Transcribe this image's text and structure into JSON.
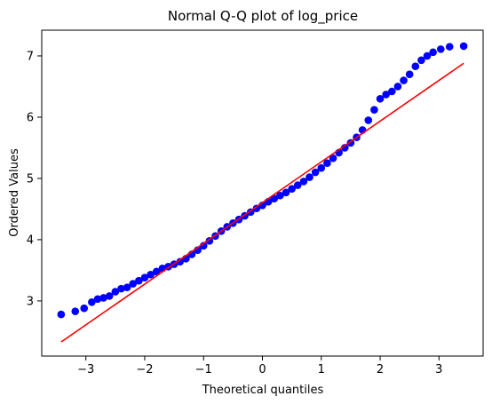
{
  "chart_data": {
    "type": "scatter",
    "title": "Normal Q-Q plot of log_price",
    "xlabel": "Theoretical quantiles",
    "ylabel": "Ordered Values",
    "xlim": [
      -3.75,
      3.75
    ],
    "ylim": [
      2.1,
      7.42
    ],
    "xticks": [
      -3,
      -2,
      -1,
      0,
      1,
      2,
      3
    ],
    "yticks": [
      3,
      4,
      5,
      6,
      7
    ],
    "grid": false,
    "legend": "none",
    "series": [
      {
        "kind": "points",
        "color": "#0000ff",
        "points": [
          [
            -3.42,
            2.78
          ],
          [
            -3.18,
            2.83
          ],
          [
            -3.03,
            2.88
          ],
          [
            -2.9,
            2.98
          ],
          [
            -2.8,
            3.03
          ],
          [
            -2.7,
            3.05
          ],
          [
            -2.6,
            3.08
          ],
          [
            -2.5,
            3.15
          ],
          [
            -2.4,
            3.2
          ],
          [
            -2.3,
            3.22
          ],
          [
            -2.2,
            3.28
          ],
          [
            -2.1,
            3.33
          ],
          [
            -2.0,
            3.38
          ],
          [
            -1.9,
            3.43
          ],
          [
            -1.8,
            3.48
          ],
          [
            -1.7,
            3.53
          ],
          [
            -1.6,
            3.56
          ],
          [
            -1.5,
            3.6
          ],
          [
            -1.4,
            3.64
          ],
          [
            -1.3,
            3.69
          ],
          [
            -1.2,
            3.76
          ],
          [
            -1.1,
            3.83
          ],
          [
            -1.0,
            3.9
          ],
          [
            -0.9,
            3.98
          ],
          [
            -0.8,
            4.06
          ],
          [
            -0.7,
            4.14
          ],
          [
            -0.6,
            4.21
          ],
          [
            -0.5,
            4.27
          ],
          [
            -0.4,
            4.33
          ],
          [
            -0.3,
            4.39
          ],
          [
            -0.2,
            4.45
          ],
          [
            -0.1,
            4.51
          ],
          [
            0.0,
            4.56
          ],
          [
            0.1,
            4.62
          ],
          [
            0.2,
            4.67
          ],
          [
            0.3,
            4.72
          ],
          [
            0.4,
            4.77
          ],
          [
            0.5,
            4.83
          ],
          [
            0.6,
            4.89
          ],
          [
            0.7,
            4.95
          ],
          [
            0.8,
            5.02
          ],
          [
            0.9,
            5.1
          ],
          [
            1.0,
            5.17
          ],
          [
            1.1,
            5.25
          ],
          [
            1.2,
            5.33
          ],
          [
            1.3,
            5.42
          ],
          [
            1.4,
            5.5
          ],
          [
            1.5,
            5.58
          ],
          [
            1.6,
            5.67
          ],
          [
            1.7,
            5.79
          ],
          [
            1.8,
            5.95
          ],
          [
            1.9,
            6.12
          ],
          [
            2.0,
            6.3
          ],
          [
            2.1,
            6.37
          ],
          [
            2.2,
            6.42
          ],
          [
            2.3,
            6.5
          ],
          [
            2.4,
            6.6
          ],
          [
            2.5,
            6.7
          ],
          [
            2.6,
            6.83
          ],
          [
            2.7,
            6.93
          ],
          [
            2.8,
            7.0
          ],
          [
            2.9,
            7.06
          ],
          [
            3.03,
            7.11
          ],
          [
            3.18,
            7.15
          ],
          [
            3.42,
            7.16
          ]
        ]
      },
      {
        "kind": "fit-line",
        "color": "#ff0000",
        "points": [
          [
            -3.42,
            2.33
          ],
          [
            3.42,
            6.88
          ]
        ]
      }
    ]
  }
}
